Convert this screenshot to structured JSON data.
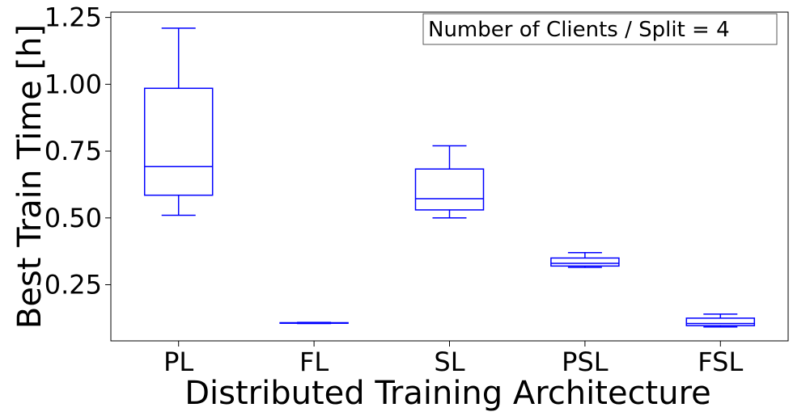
{
  "chart_data": {
    "type": "box",
    "xlabel": "Distributed Training Architecture",
    "ylabel": "Best Train Time [h]",
    "annotation": "Number of Clients / Split = 4",
    "ylim": [
      0.04,
      1.27
    ],
    "yticks": [
      0.25,
      0.5,
      0.75,
      1.0,
      1.25
    ],
    "ytick_labels": [
      "0.25",
      "0.50",
      "0.75",
      "1.00",
      "1.25"
    ],
    "grid": false,
    "box_color": "#0000ff",
    "categories": [
      "PL",
      "FL",
      "SL",
      "PSL",
      "FSL"
    ],
    "boxes": [
      {
        "label": "PL",
        "whisker_low": 0.51,
        "q1": 0.585,
        "median": 0.692,
        "q3": 0.985,
        "whisker_high": 1.21
      },
      {
        "label": "FL",
        "whisker_low": 0.105,
        "q1": 0.106,
        "median": 0.107,
        "q3": 0.108,
        "whisker_high": 0.109
      },
      {
        "label": "SL",
        "whisker_low": 0.5,
        "q1": 0.53,
        "median": 0.572,
        "q3": 0.683,
        "whisker_high": 0.77
      },
      {
        "label": "PSL",
        "whisker_low": 0.315,
        "q1": 0.32,
        "median": 0.33,
        "q3": 0.35,
        "whisker_high": 0.37
      },
      {
        "label": "FSL",
        "whisker_low": 0.092,
        "q1": 0.097,
        "median": 0.105,
        "q3": 0.125,
        "whisker_high": 0.14
      }
    ]
  }
}
